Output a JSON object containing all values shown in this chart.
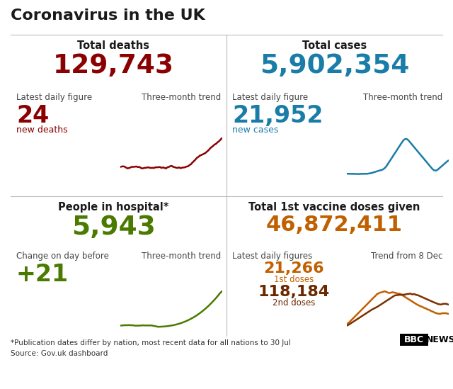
{
  "title": "Coronavirus in the UK",
  "title_color": "#1a1a1a",
  "background_color": "#ffffff",
  "sections": {
    "deaths": {
      "label": "Total deaths",
      "total": "129,743",
      "total_color": "#8b0000",
      "daily_label": "Latest daily figure",
      "trend_label": "Three-month trend",
      "daily_value": "24",
      "daily_sub": "new deaths",
      "daily_color": "#8b0000",
      "sub_color": "#8b0000",
      "trend_color": "#8b0000"
    },
    "cases": {
      "label": "Total cases",
      "total": "5,902,354",
      "total_color": "#1a7da8",
      "daily_label": "Latest daily figure",
      "trend_label": "Three-month trend",
      "daily_value": "21,952",
      "daily_sub": "new cases",
      "daily_color": "#1a7da8",
      "sub_color": "#1a7da8",
      "trend_color": "#1a7da8"
    },
    "hospital": {
      "label": "People in hospital*",
      "total": "5,943",
      "total_color": "#4a7a00",
      "daily_label": "Change on day before",
      "trend_label": "Three-month trend",
      "daily_value": "+21",
      "daily_color": "#4a7a00",
      "trend_color": "#4a7a00"
    },
    "vaccine": {
      "label": "Total 1st vaccine doses given",
      "total": "46,872,411",
      "total_color": "#c06000",
      "daily_label": "Latest daily figures",
      "trend_label": "Trend from 8 Dec",
      "dose1_value": "21,266",
      "dose1_label": "1st doses",
      "dose1_color": "#c06000",
      "dose2_value": "118,184",
      "dose2_label": "2nd doses",
      "dose2_color": "#6b2800",
      "trend_color1": "#c06000",
      "trend_color2": "#7a3000"
    }
  },
  "footnote": "*Publication dates differ by nation, most recent data for all nations to 30 Jul",
  "source": "Source: Gov.uk dashboard",
  "footnote_color": "#333333"
}
